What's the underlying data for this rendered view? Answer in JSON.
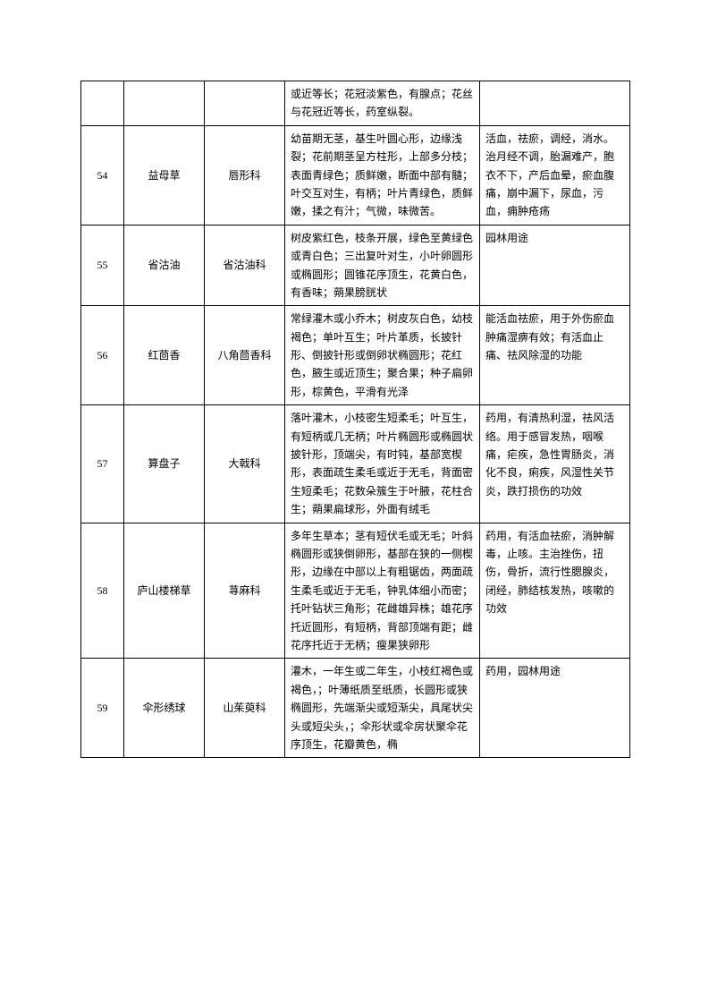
{
  "table": {
    "rows": [
      {
        "num": "",
        "name": "",
        "family": "",
        "desc": "或近等长；花冠淡紫色，有腺点；花丝与花冠近等长，药室纵裂。",
        "use": ""
      },
      {
        "num": "54",
        "name": "益母草",
        "family": "唇形科",
        "desc": "幼苗期无茎，基生叶圆心形，边缘浅裂；花前期茎呈方柱形，上部多分枝；表面青绿色；质鲜嫩，断面中部有髓；叶交互对生，有柄；叶片青绿色，质鲜嫩，揉之有汁；气微，味微苦。",
        "use": "活血，祛瘀，调经，消水。治月经不调，胎漏难产，胞衣不下，产后血晕，瘀血腹痛，崩中漏下，尿血，污血，痈肿疮疡"
      },
      {
        "num": "55",
        "name": "省沽油",
        "family": "省沽油科",
        "desc": "树皮紫红色，枝条开展，绿色至黄绿色或青白色；三出复叶对生，小叶卵圆形或椭圆形；圆锥花序顶生，花黄白色，有香味；蒴果膀胱状",
        "use": "园林用途"
      },
      {
        "num": "56",
        "name": "红茴香",
        "family": "八角茴香科",
        "desc": "常绿灌木或小乔木；树皮灰白色，幼枝褐色；单叶互生；叶片革质，长披针形、倒披针形或倒卵状椭圆形；花红色，腋生或近顶生；聚合果；种子扁卵形，棕黄色，平滑有光泽",
        "use": "能活血祛瘀，用于外伤瘀血肿痛湿痹有效；有活血止痛、祛风除湿的功能"
      },
      {
        "num": "57",
        "name": "算盘子",
        "family": "大戟科",
        "desc": "落叶灌木，小枝密生短柔毛；叶互生，有短柄或几无柄；叶片椭圆形或椭圆状披针形，顶端尖，有时钝，基部宽楔形，表面疏生柔毛或近于无毛，背面密生短柔毛；花数朵簇生于叶腋，花柱合生；蒴果扁球形，外面有绒毛",
        "use": "药用，有清热利湿，祛风活络。用于感冒发热，咽喉痛，疟疾，急性胃肠炎，消化不良，痢疾，风湿性关节炎，跌打损伤的功效"
      },
      {
        "num": "58",
        "name": "庐山楼梯草",
        "family": "荨麻科",
        "desc": "多年生草本；茎有短伏毛或无毛；叶斜椭圆形或狭倒卵形，基部在狭的一侧楔形，边缘在中部以上有粗锯齿，两面疏生柔毛或近于无毛，钟乳体细小而密；托叶钻状三角形；花雌雄异株；雄花序托近圆形，有短柄，背部顶端有距；雌花序托近于无柄；瘦果狭卵形",
        "use": "药用，有活血祛瘀，消肿解毒，止咳。主治挫伤，扭伤，骨折，流行性腮腺炎，闭经，肺结核发热，咳嗽的功效"
      },
      {
        "num": "59",
        "name": "伞形绣球",
        "family": "山茱萸科",
        "desc": "灌木，一年生或二年生，小枝红褐色或褐色，；叶薄纸质至纸质，长圆形或狭椭圆形，先端渐尖或短渐尖，具尾状尖头或短尖头，；伞形状或伞房状聚伞花序顶生，花瓣黄色，椭",
        "use": "药用，园林用途"
      }
    ]
  },
  "columnWidths": {
    "num": "48px",
    "name": "90px",
    "family": "90px",
    "desc": "218px",
    "use": "168px"
  },
  "colors": {
    "background": "#ffffff",
    "border": "#000000",
    "text": "#000000"
  },
  "typography": {
    "fontFamily": "SimSun",
    "fontSize": 12,
    "lineHeight": 1.7
  }
}
